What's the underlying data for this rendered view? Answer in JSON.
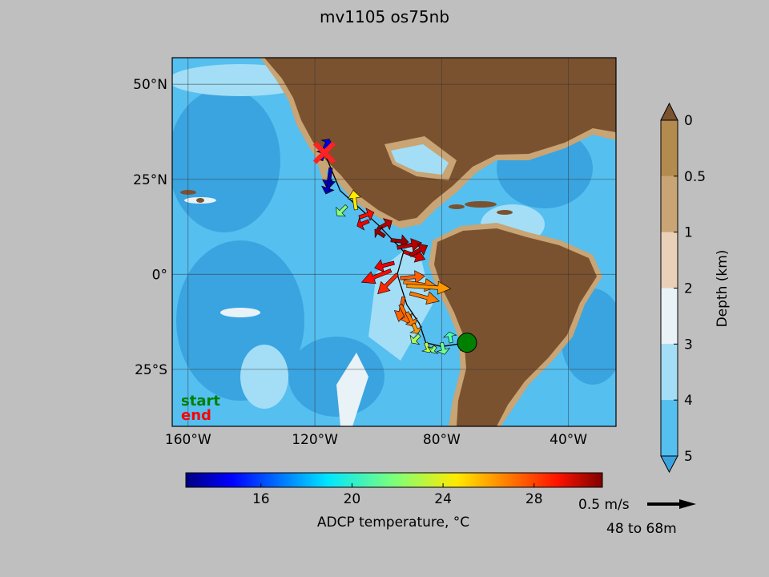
{
  "chart_data": {
    "type": "map",
    "title": "mv1105 os75nb",
    "map": {
      "lon_ticks": [
        -160,
        -120,
        -80,
        -40
      ],
      "lon_tick_labels": [
        "160°W",
        "120°W",
        "80°W",
        "40°W"
      ],
      "lat_ticks": [
        50,
        25,
        0,
        -25
      ],
      "lat_tick_labels": [
        "50°N",
        "25°N",
        "0°",
        "25°S"
      ],
      "lon_range": [
        -165,
        -25
      ],
      "lat_range": [
        -40,
        57
      ],
      "grid": true
    },
    "start_label": "start",
    "end_label": "end",
    "start_color": "#008000",
    "end_color": "#ff0000",
    "track": [
      [
        -117,
        32
      ],
      [
        -112,
        22
      ],
      [
        -100,
        13
      ],
      [
        -92,
        6
      ],
      [
        -94,
        0
      ],
      [
        -91,
        -8
      ],
      [
        -87,
        -13
      ],
      [
        -85,
        -18
      ],
      [
        -80,
        -19
      ],
      [
        -72,
        -18
      ]
    ],
    "start_point": [
      -72,
      -18
    ],
    "end_point": [
      -117,
      32
    ],
    "vectors": [
      {
        "lon": -117,
        "lat": 33,
        "u": 0.05,
        "v": 0.1,
        "t": 14.5
      },
      {
        "lon": -118,
        "lat": 30,
        "u": 0.03,
        "v": 0.12,
        "t": 14.0
      },
      {
        "lon": -115,
        "lat": 28,
        "u": -0.03,
        "v": -0.22,
        "t": 13.8
      },
      {
        "lon": -115,
        "lat": 25,
        "u": -0.05,
        "v": -0.15,
        "t": 13.5
      },
      {
        "lon": -110,
        "lat": 18,
        "u": -0.1,
        "v": -0.1,
        "t": 22.0
      },
      {
        "lon": -107,
        "lat": 17,
        "u": -0.03,
        "v": 0.2,
        "t": 24.5
      },
      {
        "lon": -106,
        "lat": 15,
        "u": 0.15,
        "v": 0.05,
        "t": 28.5
      },
      {
        "lon": -103,
        "lat": 14,
        "u": -0.12,
        "v": -0.05,
        "t": 29.0
      },
      {
        "lon": -100,
        "lat": 12,
        "u": 0.14,
        "v": 0.08,
        "t": 30.0
      },
      {
        "lon": -98,
        "lat": 10,
        "u": -0.1,
        "v": 0.07,
        "t": 30.5
      },
      {
        "lon": -96,
        "lat": 9,
        "u": 0.18,
        "v": -0.02,
        "t": 30.5
      },
      {
        "lon": -94,
        "lat": 7,
        "u": 0.25,
        "v": 0.05,
        "t": 30.0
      },
      {
        "lon": -92,
        "lat": 6,
        "u": 0.22,
        "v": -0.08,
        "t": 29.5
      },
      {
        "lon": -90,
        "lat": 5,
        "u": 0.18,
        "v": 0.1,
        "t": 30.0
      },
      {
        "lon": -95,
        "lat": 3,
        "u": -0.2,
        "v": -0.05,
        "t": 29.0
      },
      {
        "lon": -96,
        "lat": 1,
        "u": -0.3,
        "v": -0.12,
        "t": 28.5
      },
      {
        "lon": -94,
        "lat": 0,
        "u": -0.2,
        "v": -0.2,
        "t": 28.0
      },
      {
        "lon": -93,
        "lat": -1,
        "u": 0.25,
        "v": 0.02,
        "t": 27.0
      },
      {
        "lon": -92,
        "lat": -2,
        "u": 0.35,
        "v": -0.05,
        "t": 26.5
      },
      {
        "lon": -91,
        "lat": -3,
        "u": 0.45,
        "v": -0.03,
        "t": 26.0
      },
      {
        "lon": -90,
        "lat": -5,
        "u": 0.3,
        "v": -0.08,
        "t": 26.5
      },
      {
        "lon": -92,
        "lat": -6,
        "u": -0.05,
        "v": -0.25,
        "t": 27.0
      },
      {
        "lon": -93,
        "lat": -8,
        "u": 0.1,
        "v": -0.2,
        "t": 26.8
      },
      {
        "lon": -91,
        "lat": -10,
        "u": 0.08,
        "v": -0.15,
        "t": 26.5
      },
      {
        "lon": -89,
        "lat": -13,
        "u": 0.05,
        "v": -0.1,
        "t": 26.0
      },
      {
        "lon": -87,
        "lat": -16,
        "u": -0.08,
        "v": -0.08,
        "t": 22.5
      },
      {
        "lon": -85,
        "lat": -18,
        "u": 0.04,
        "v": -0.1,
        "t": 23.0
      },
      {
        "lon": -82,
        "lat": -19,
        "u": -0.04,
        "v": -0.06,
        "t": 22.0
      },
      {
        "lon": -80,
        "lat": -18,
        "u": 0.03,
        "v": -0.12,
        "t": 21.5
      },
      {
        "lon": -77,
        "lat": -18,
        "u": -0.02,
        "v": 0.11,
        "t": 21.0
      },
      {
        "lon": -74,
        "lat": -18,
        "u": 0.06,
        "v": -0.05,
        "t": 21.5
      }
    ],
    "temperature_colorbar": {
      "label": "ADCP temperature, °C",
      "range": [
        12.7,
        31.0
      ],
      "ticks": [
        16,
        20,
        24,
        28
      ],
      "colormap": "jet"
    },
    "depth_colorbar": {
      "label": "Depth (km)",
      "ticks": [
        "0",
        "0.5",
        "1",
        "2",
        "3",
        "4",
        "5"
      ],
      "bands": [
        "#b38b4e",
        "#c9a474",
        "#ead0b8",
        "#e8f2f7",
        "#a3def6",
        "#55bff0"
      ],
      "extend_top_color": "#7a5230",
      "extend_bottom_color": "#3aa4e0"
    },
    "scale": {
      "label": "0.5 m/s",
      "depth_range": "48 to 68m"
    },
    "colors": {
      "land": "#7a5230",
      "land_coast": "#c9a474",
      "ocean_deep": "#3aa4e0",
      "ocean_mid": "#55bff0",
      "ocean_shelf": "#a3def6",
      "ocean_shallow": "#e8f2f7"
    }
  }
}
